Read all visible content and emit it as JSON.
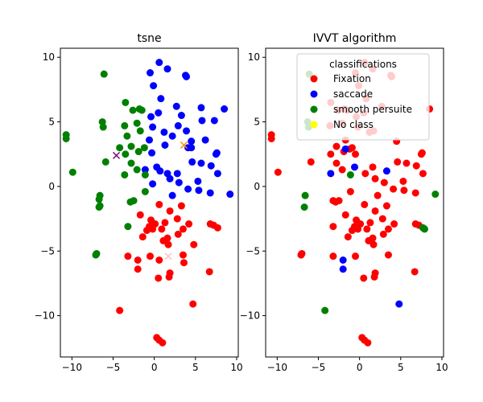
{
  "chart_data": [
    {
      "type": "scatter",
      "title": "tsne",
      "xlabel": "",
      "ylabel": "",
      "xlim": [
        -11.4,
        10.2
      ],
      "ylim": [
        -13.2,
        10.7
      ],
      "xticks": [
        -10,
        -5,
        0,
        5,
        10
      ],
      "yticks": [
        -10,
        -5,
        0,
        5,
        10
      ],
      "xtick_labels": [
        "−10",
        "−5",
        "0",
        "5",
        "10"
      ],
      "ytick_labels": [
        "−10",
        "−5",
        "0",
        "5",
        "10"
      ],
      "legend": null,
      "series": [
        {
          "color": "#ff0000",
          "marker": "circle",
          "points": [
            [
              0.6,
              -1.4
            ],
            [
              1.9,
              -1.9
            ],
            [
              3.3,
              -1.5
            ],
            [
              -1.7,
              -2.2
            ],
            [
              2.8,
              -2.5
            ],
            [
              -0.4,
              -2.6
            ],
            [
              1.3,
              -2.8
            ],
            [
              3.5,
              -3.3
            ],
            [
              -0.9,
              -3.4
            ],
            [
              0.9,
              -3.3
            ],
            [
              2.9,
              -3.7
            ],
            [
              -1.4,
              -3.9
            ],
            [
              1.6,
              -4.0
            ],
            [
              -0.6,
              -3.1
            ],
            [
              0.1,
              -2.9
            ],
            [
              4.2,
              -2.9
            ],
            [
              6.8,
              -2.9
            ],
            [
              7.2,
              -3.0
            ],
            [
              7.7,
              -3.2
            ],
            [
              -0.2,
              -3.3
            ],
            [
              1.1,
              -4.2
            ],
            [
              4.8,
              -4.5
            ],
            [
              1.7,
              -4.5
            ],
            [
              3.5,
              -5.3
            ],
            [
              -3.2,
              -5.4
            ],
            [
              -0.5,
              -5.4
            ],
            [
              0.6,
              -5.7
            ],
            [
              -2.0,
              -5.7
            ],
            [
              3.6,
              -5.9
            ],
            [
              -2.0,
              -6.4
            ],
            [
              1.9,
              -6.7
            ],
            [
              1.8,
              -7.0
            ],
            [
              0.5,
              -7.1
            ],
            [
              6.7,
              -6.6
            ],
            [
              4.7,
              -9.1
            ],
            [
              -4.2,
              -9.6
            ],
            [
              0.3,
              -11.7
            ],
            [
              0.6,
              -11.9
            ],
            [
              1.0,
              -12.1
            ]
          ]
        },
        {
          "color": "#0000ff",
          "marker": "circle",
          "points": [
            [
              0.6,
              9.6
            ],
            [
              -0.5,
              8.8
            ],
            [
              1.6,
              9.1
            ],
            [
              3.8,
              8.6
            ],
            [
              3.9,
              8.5
            ],
            [
              -0.1,
              7.8
            ],
            [
              0.8,
              6.8
            ],
            [
              2.7,
              6.2
            ],
            [
              5.7,
              6.1
            ],
            [
              8.5,
              6.0
            ],
            [
              0.5,
              5.7
            ],
            [
              5.8,
              5.1
            ],
            [
              -0.4,
              5.4
            ],
            [
              3.3,
              5.5
            ],
            [
              7.3,
              5.1
            ],
            [
              2.9,
              4.7
            ],
            [
              -0.2,
              4.6
            ],
            [
              1.2,
              4.2
            ],
            [
              3.9,
              4.3
            ],
            [
              4.5,
              3.5
            ],
            [
              6.2,
              3.6
            ],
            [
              -0.3,
              2.6
            ],
            [
              -0.6,
              3.6
            ],
            [
              2.2,
              3.9
            ],
            [
              1.3,
              3.2
            ],
            [
              4.1,
              3.0
            ],
            [
              4.5,
              3.0
            ],
            [
              7.5,
              2.5
            ],
            [
              7.6,
              2.6
            ],
            [
              0.3,
              1.5
            ],
            [
              4.6,
              1.9
            ],
            [
              5.7,
              1.8
            ],
            [
              0.7,
              1.2
            ],
            [
              -1.1,
              1.3
            ],
            [
              2.8,
              1.0
            ],
            [
              1.9,
              0.6
            ],
            [
              3.0,
              0.3
            ],
            [
              1.6,
              1.0
            ],
            [
              6.9,
              1.6
            ],
            [
              7.7,
              1.0
            ],
            [
              5.3,
              0.4
            ],
            [
              4.1,
              -0.2
            ],
            [
              5.4,
              -0.3
            ],
            [
              6.8,
              -0.5
            ],
            [
              9.2,
              -0.6
            ],
            [
              -0.2,
              0.2
            ],
            [
              2.2,
              -0.7
            ]
          ]
        },
        {
          "color": "#008000",
          "marker": "circle",
          "points": [
            [
              -6.1,
              8.7
            ],
            [
              -3.5,
              6.5
            ],
            [
              -1.8,
              6.0
            ],
            [
              -1.5,
              5.9
            ],
            [
              -2.6,
              5.9
            ],
            [
              -6.3,
              5.0
            ],
            [
              -6.2,
              4.6
            ],
            [
              -3.6,
              4.7
            ],
            [
              -2.1,
              4.9
            ],
            [
              -3.3,
              3.9
            ],
            [
              -1.7,
              4.3
            ],
            [
              -10.7,
              4.0
            ],
            [
              -10.7,
              3.7
            ],
            [
              -2.8,
              3.1
            ],
            [
              -1.9,
              2.7
            ],
            [
              -3.5,
              2.5
            ],
            [
              -1.2,
              3.0
            ],
            [
              -4.2,
              3.0
            ],
            [
              -5.9,
              1.9
            ],
            [
              -2.8,
              1.8
            ],
            [
              -2.1,
              1.3
            ],
            [
              -3.6,
              0.9
            ],
            [
              -1.1,
              0.9
            ],
            [
              -9.9,
              1.1
            ],
            [
              -6.6,
              -0.7
            ],
            [
              -1.1,
              -0.4
            ],
            [
              -6.7,
              -1.0
            ],
            [
              -2.5,
              -1.1
            ],
            [
              -2.9,
              -1.2
            ],
            [
              -6.6,
              -1.5
            ],
            [
              -6.7,
              -1.6
            ],
            [
              -3.2,
              -3.1
            ],
            [
              -7.0,
              -5.2
            ],
            [
              -7.1,
              -5.3
            ]
          ]
        },
        {
          "color": "#800080",
          "marker": "x",
          "points": [
            [
              -4.6,
              2.4
            ]
          ]
        },
        {
          "color": "#ff8c00",
          "marker": "x",
          "points": [
            [
              3.6,
              3.2
            ]
          ]
        },
        {
          "color": "#ffc0cb",
          "marker": "x",
          "points": [
            [
              1.7,
              -5.4
            ]
          ]
        }
      ]
    },
    {
      "type": "scatter",
      "title": "IVVT algorithm",
      "xlabel": "",
      "ylabel": "",
      "xlim": [
        -11.4,
        10.2
      ],
      "ylim": [
        -13.2,
        10.7
      ],
      "xticks": [
        -10,
        -5,
        0,
        5,
        10
      ],
      "yticks": [
        -10,
        -5,
        0,
        5,
        10
      ],
      "xtick_labels": [
        "−10",
        "−5",
        "0",
        "5",
        "10"
      ],
      "ytick_labels": [
        "−10",
        "−5",
        "0",
        "5",
        "10"
      ],
      "legend": {
        "title": "classifications",
        "placement": "upper right",
        "entries": [
          {
            "label": "Fixation",
            "color": "#ff0000"
          },
          {
            "label": "saccade",
            "color": "#0000ff"
          },
          {
            "label": "smooth persuite",
            "color": "#008000"
          },
          {
            "label": "No class",
            "color": "#ffff00"
          }
        ]
      },
      "series": [
        {
          "name": "Fixation",
          "color": "#ff0000",
          "marker": "circle",
          "points": [
            [
              0.6,
              9.6
            ],
            [
              -0.5,
              8.8
            ],
            [
              1.6,
              9.1
            ],
            [
              3.8,
              8.6
            ],
            [
              3.9,
              8.5
            ],
            [
              -0.1,
              7.8
            ],
            [
              0.8,
              6.8
            ],
            [
              2.7,
              6.2
            ],
            [
              8.5,
              6.0
            ],
            [
              0.5,
              5.7
            ],
            [
              -0.4,
              5.4
            ],
            [
              -3.5,
              6.5
            ],
            [
              -1.8,
              6.0
            ],
            [
              -1.5,
              5.9
            ],
            [
              -2.6,
              5.9
            ],
            [
              -3.6,
              4.7
            ],
            [
              -2.1,
              4.9
            ],
            [
              -0.2,
              4.6
            ],
            [
              1.2,
              4.2
            ],
            [
              1.7,
              4.3
            ],
            [
              -10.7,
              4.0
            ],
            [
              -10.7,
              3.7
            ],
            [
              -1.7,
              3.6
            ],
            [
              -0.9,
              3.0
            ],
            [
              -2.8,
              3.1
            ],
            [
              -1.9,
              2.7
            ],
            [
              -0.5,
              2.5
            ],
            [
              -3.5,
              2.5
            ],
            [
              -1.2,
              2.9
            ],
            [
              4.5,
              3.5
            ],
            [
              7.5,
              2.5
            ],
            [
              7.6,
              2.6
            ],
            [
              -5.9,
              1.9
            ],
            [
              -2.8,
              1.8
            ],
            [
              1.6,
              1.5
            ],
            [
              4.6,
              1.9
            ],
            [
              5.7,
              1.8
            ],
            [
              0.7,
              1.0
            ],
            [
              -2.1,
              1.3
            ],
            [
              -9.9,
              1.1
            ],
            [
              1.9,
              0.6
            ],
            [
              3.0,
              0.3
            ],
            [
              6.9,
              1.6
            ],
            [
              7.7,
              1.0
            ],
            [
              5.3,
              0.4
            ],
            [
              4.1,
              -0.2
            ],
            [
              5.4,
              -0.3
            ],
            [
              6.8,
              -0.5
            ],
            [
              -3.2,
              -1.1
            ],
            [
              -2.5,
              -1.1
            ],
            [
              -2.9,
              -1.2
            ],
            [
              -1.1,
              -0.4
            ],
            [
              2.2,
              -0.7
            ],
            [
              0.6,
              -1.4
            ],
            [
              1.9,
              -1.9
            ],
            [
              3.3,
              -1.5
            ],
            [
              -1.7,
              -2.2
            ],
            [
              2.8,
              -2.5
            ],
            [
              -0.4,
              -2.6
            ],
            [
              1.3,
              -2.8
            ],
            [
              3.5,
              -3.3
            ],
            [
              -0.9,
              -3.4
            ],
            [
              0.9,
              -3.3
            ],
            [
              2.9,
              -3.7
            ],
            [
              -1.4,
              -3.9
            ],
            [
              1.6,
              -4.0
            ],
            [
              -0.6,
              -3.1
            ],
            [
              0.1,
              -2.9
            ],
            [
              4.2,
              -2.9
            ],
            [
              6.8,
              -2.9
            ],
            [
              7.2,
              -3.0
            ],
            [
              -3.2,
              -3.1
            ],
            [
              -0.2,
              -3.3
            ],
            [
              1.1,
              -4.2
            ],
            [
              1.7,
              -4.5
            ],
            [
              3.5,
              -5.3
            ],
            [
              -3.2,
              -5.4
            ],
            [
              -0.5,
              -5.4
            ],
            [
              -7.0,
              -5.2
            ],
            [
              -7.1,
              -5.3
            ],
            [
              1.9,
              -6.7
            ],
            [
              1.8,
              -7.0
            ],
            [
              0.5,
              -7.1
            ],
            [
              6.7,
              -6.6
            ],
            [
              0.3,
              -11.7
            ],
            [
              0.6,
              -11.9
            ],
            [
              1.0,
              -12.1
            ]
          ]
        },
        {
          "name": "saccade",
          "color": "#0000ff",
          "marker": "circle",
          "points": [
            [
              -1.7,
              2.9
            ],
            [
              -0.6,
              1.5
            ],
            [
              -3.5,
              1.0
            ],
            [
              3.3,
              1.2
            ],
            [
              4.8,
              -9.1
            ],
            [
              -2.0,
              -5.7
            ],
            [
              -2.0,
              -6.4
            ]
          ]
        },
        {
          "name": "smooth persuite",
          "color": "#008000",
          "marker": "circle",
          "points": [
            [
              -6.1,
              8.7
            ],
            [
              -6.3,
              5.0
            ],
            [
              -6.2,
              4.6
            ],
            [
              -1.1,
              0.9
            ],
            [
              -6.6,
              -0.7
            ],
            [
              -6.7,
              -1.6
            ],
            [
              9.2,
              -0.6
            ],
            [
              7.7,
              -3.2
            ],
            [
              7.9,
              -3.3
            ],
            [
              -4.2,
              -9.6
            ]
          ]
        },
        {
          "name": "No class",
          "color": "#ffff00",
          "marker": "circle",
          "points": []
        }
      ]
    }
  ]
}
